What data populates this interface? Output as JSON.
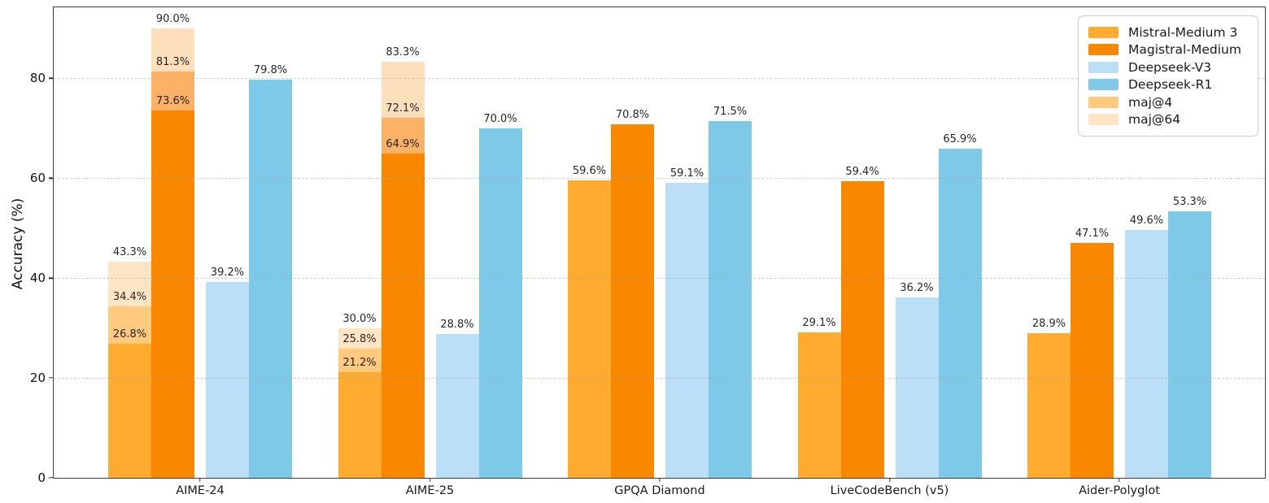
{
  "chart_data": {
    "type": "bar",
    "title": "",
    "xlabel": "",
    "ylabel": "Accuracy (%)",
    "ylim": [
      0,
      94.2
    ],
    "yticks": [
      0,
      20,
      40,
      60,
      80
    ],
    "grid": "horizontal-dashed",
    "legend_position": "upper-right",
    "value_label_suffix": "%",
    "categories": [
      "AIME-24",
      "AIME-25",
      "GPQA Diamond",
      "LiveCodeBench (v5)",
      "Aider-Polyglot"
    ],
    "series": [
      {
        "name": "Mistral-Medium 3",
        "color": "#FFAB30",
        "values": [
          26.8,
          21.2,
          59.6,
          29.1,
          28.9
        ],
        "maj4": {
          "label": "maj@4",
          "color": "#FFC97E",
          "values": [
            34.4,
            25.8,
            null,
            null,
            null
          ]
        },
        "maj64": {
          "label": "maj@64",
          "color": "#FFE5C4",
          "values": [
            43.3,
            30.0,
            null,
            null,
            null
          ]
        }
      },
      {
        "name": "Magistral-Medium",
        "color": "#F98700",
        "values": [
          73.6,
          64.9,
          70.8,
          59.4,
          47.1
        ],
        "maj4": {
          "label": "maj@4",
          "color": "#FBB266",
          "values": [
            81.3,
            72.1,
            null,
            null,
            null
          ]
        },
        "maj64": {
          "label": "maj@64",
          "color": "#FDDFBC",
          "values": [
            90.0,
            83.3,
            null,
            null,
            null
          ]
        }
      },
      {
        "name": "Deepseek-V3",
        "color": "#BADFF7",
        "values": [
          39.2,
          28.8,
          59.1,
          36.2,
          49.6
        ]
      },
      {
        "name": "Deepseek-R1",
        "color": "#7EC8E8",
        "values": [
          79.8,
          70.0,
          71.5,
          65.9,
          53.3
        ]
      }
    ]
  },
  "legend": {
    "items": [
      {
        "label": "Mistral-Medium 3",
        "color": "#FFAB30"
      },
      {
        "label": "Magistral-Medium",
        "color": "#F98700"
      },
      {
        "label": "Deepseek-V3",
        "color": "#BADFF7"
      },
      {
        "label": "Deepseek-R1",
        "color": "#7EC8E8"
      },
      {
        "label": "maj@4",
        "color": "#FFC97E"
      },
      {
        "label": "maj@64",
        "color": "#FFE5C4"
      }
    ]
  }
}
